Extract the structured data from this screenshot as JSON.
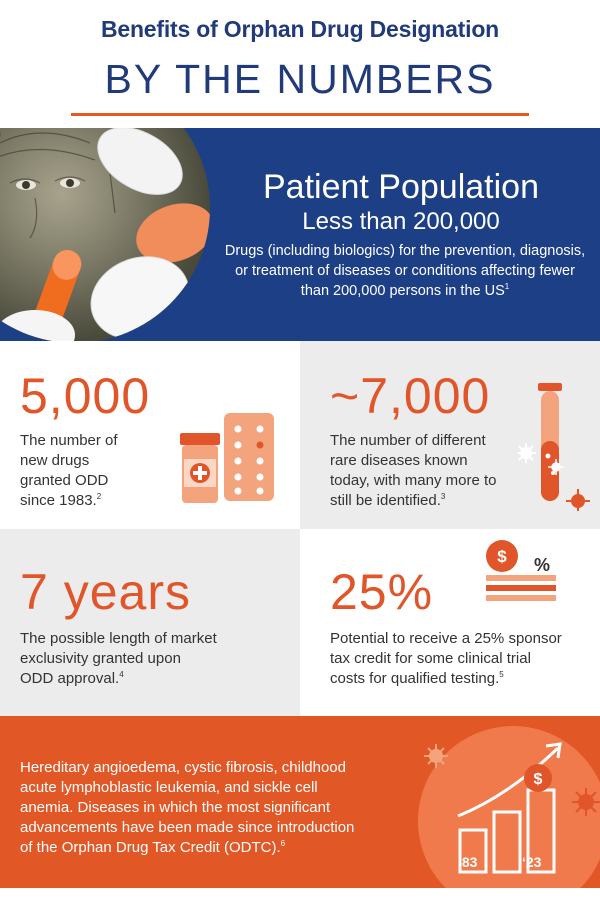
{
  "header": {
    "title_top": "Benefits of Orphan Drug Designation",
    "title_main": "BY THE NUMBERS"
  },
  "hero": {
    "heading": "Patient Population",
    "subheading": "Less than 200,000",
    "description": "Drugs (including biologics) for the prevention, diagnosis, or treatment of diseases or conditions affecting fewer than 200,000 persons in the US",
    "footnote": "1"
  },
  "stats": [
    {
      "number": "5,000",
      "lines": [
        "The number of",
        "new drugs",
        "granted ODD",
        "since 1983."
      ],
      "footnote": "2"
    },
    {
      "number": "~7,000",
      "lines": [
        "The number of different",
        "rare diseases known",
        "today, with many more to",
        "still be identified."
      ],
      "footnote": "3"
    },
    {
      "number": "7 years",
      "lines": [
        "The possible length of market",
        "exclusivity granted upon",
        "ODD approval."
      ],
      "footnote": "4"
    },
    {
      "number": "25%",
      "lines": [
        "Potential to receive a 25% sponsor",
        "tax credit for some clinical trial",
        "costs for qualified testing."
      ],
      "footnote": "5"
    }
  ],
  "band": {
    "lines": [
      "Hereditary angioedema, cystic fibrosis, childhood",
      "acute lymphoblastic leukemia, and sickle cell",
      "anemia. Diseases in which the most significant",
      "advancements have been made since introduction",
      "of the Orphan Drug Tax Credit (ODTC)."
    ],
    "footnote": "6",
    "year_start": "‘83",
    "year_end": "‘23",
    "dollar_symbol": "$"
  },
  "icons": {
    "percent_symbol": "%",
    "dollar_symbol": "$"
  },
  "colors": {
    "navy": "#1d3f86",
    "orange": "#e25726",
    "light_orange": "#f07a4c",
    "peach": "#f4a47d",
    "grey": "#ececec"
  }
}
